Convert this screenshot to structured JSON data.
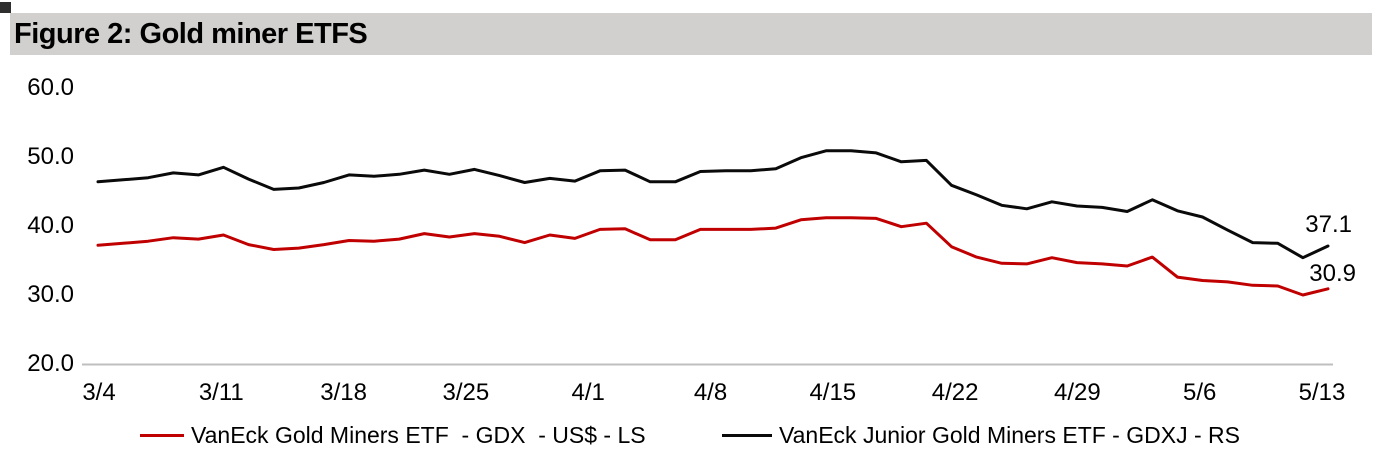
{
  "figure": {
    "title": "Figure 2: Gold miner ETFS"
  },
  "colors": {
    "title_bar_bg": "#d1d0ce",
    "corner_square": "#2e2e2e",
    "axis_line": "#bfbfbf",
    "gdx_red": "#c00000",
    "gdxj_black": "#0a0a0a"
  },
  "chart_data": {
    "type": "line",
    "title": "Figure 2: Gold miner ETFS",
    "xlabel": "",
    "ylabel": "",
    "ylim": [
      20.0,
      60.0
    ],
    "grid": false,
    "legend_position": "bottom",
    "y_tick_labels": [
      "60.0",
      "50.0",
      "40.0",
      "30.0",
      "20.0"
    ],
    "y_tick_values": [
      60,
      50,
      40,
      30,
      20
    ],
    "x_tick_labels": [
      "3/4",
      "3/11",
      "3/18",
      "3/25",
      "4/1",
      "4/8",
      "4/15",
      "4/22",
      "4/29",
      "5/6",
      "5/13"
    ],
    "categories": [
      "3/4",
      "3/7",
      "3/8",
      "3/9",
      "3/10",
      "3/11",
      "3/14",
      "3/15",
      "3/16",
      "3/17",
      "3/18",
      "3/21",
      "3/22",
      "3/23",
      "3/24",
      "3/25",
      "3/28",
      "3/29",
      "3/30",
      "3/31",
      "4/1",
      "4/4",
      "4/5",
      "4/6",
      "4/7",
      "4/8",
      "4/11",
      "4/12",
      "4/13",
      "4/14",
      "4/18",
      "4/19",
      "4/20",
      "4/21",
      "4/22",
      "4/25",
      "4/26",
      "4/27",
      "4/28",
      "4/29",
      "5/2",
      "5/3",
      "5/4",
      "5/5",
      "5/6",
      "5/9",
      "5/10",
      "5/11",
      "5/12",
      "5/13"
    ],
    "series": [
      {
        "name": "VanEck Gold Miners ETF  - GDX  - US$ - LS",
        "color": "#c00000",
        "axis": "left",
        "end_label": "30.9",
        "values": [
          37.2,
          37.5,
          37.8,
          38.3,
          38.1,
          38.7,
          37.3,
          36.6,
          36.8,
          37.3,
          37.9,
          37.8,
          38.1,
          38.9,
          38.4,
          38.9,
          38.5,
          37.6,
          38.7,
          38.2,
          39.5,
          39.6,
          38.0,
          38.0,
          39.5,
          39.5,
          39.5,
          39.7,
          40.9,
          41.2,
          41.2,
          41.1,
          39.9,
          40.4,
          37.0,
          35.5,
          34.6,
          34.5,
          35.4,
          34.7,
          34.5,
          34.2,
          35.5,
          32.6,
          32.1,
          31.9,
          31.4,
          31.3,
          30.0,
          30.9
        ]
      },
      {
        "name": "VanEck Junior Gold Miners ETF - GDXJ - RS",
        "color": "#0a0a0a",
        "axis": "right",
        "end_label": "37.1",
        "values": [
          46.4,
          46.7,
          47.0,
          47.7,
          47.4,
          48.5,
          46.8,
          45.3,
          45.5,
          46.3,
          47.4,
          47.2,
          47.5,
          48.1,
          47.5,
          48.2,
          47.3,
          46.3,
          46.9,
          46.5,
          48.0,
          48.1,
          46.4,
          46.4,
          47.9,
          48.0,
          48.0,
          48.3,
          49.9,
          50.9,
          50.9,
          50.6,
          49.3,
          49.5,
          45.9,
          44.5,
          43.0,
          42.5,
          43.5,
          42.9,
          42.7,
          42.1,
          43.8,
          42.2,
          41.3,
          39.4,
          37.6,
          37.5,
          35.4,
          37.1
        ]
      }
    ]
  }
}
